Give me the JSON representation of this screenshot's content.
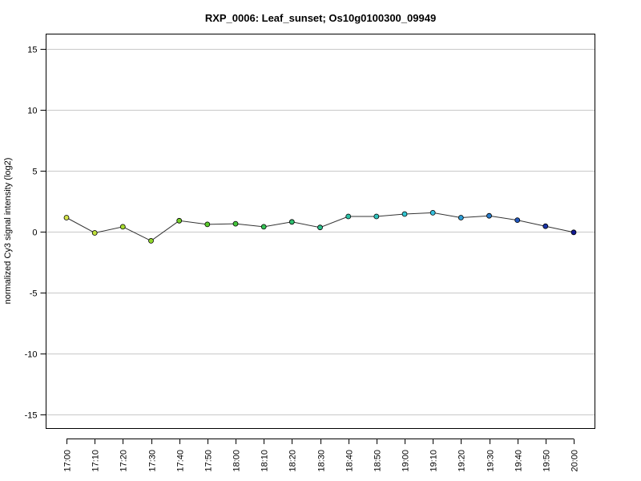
{
  "chart_data": {
    "type": "line",
    "title": "RXP_0006: Leaf_sunset; Os10g0100300_09949",
    "xlabel": "",
    "ylabel": "normalized Cy3 signal intensity (log2)",
    "ylim": [
      -16.2,
      16.2
    ],
    "yticks": [
      -15,
      -10,
      -5,
      0,
      5,
      10,
      15
    ],
    "ytick_labels": [
      "-15",
      "-10",
      "-5",
      "0",
      "5",
      "10",
      "15"
    ],
    "grid": "horizontal",
    "categories": [
      "17:00",
      "17:10",
      "17:20",
      "17:30",
      "17:40",
      "17:50",
      "18:00",
      "18:10",
      "18:20",
      "18:30",
      "18:40",
      "18:50",
      "19:00",
      "19:10",
      "19:20",
      "19:30",
      "19:40",
      "19:50",
      "20:00"
    ],
    "values": [
      1.15,
      -0.1,
      0.4,
      -0.75,
      0.9,
      0.6,
      0.65,
      0.4,
      0.8,
      0.35,
      1.25,
      1.25,
      1.45,
      1.55,
      1.15,
      1.3,
      0.95,
      0.45,
      -0.05
    ],
    "point_colors": [
      "#d4e34a",
      "#bfe03c",
      "#a8dc30",
      "#8fd62a",
      "#75d128",
      "#5acb2c",
      "#44c63c",
      "#36c255",
      "#2fc070",
      "#2cbf8c",
      "#2dc1a6",
      "#30c3bd",
      "#35c6d2",
      "#36c0df",
      "#2f9ed6",
      "#297ccb",
      "#2258bd",
      "#1a35a9",
      "#121a94"
    ],
    "line_color": "#333333",
    "grid_color": "#c8c8c8"
  }
}
